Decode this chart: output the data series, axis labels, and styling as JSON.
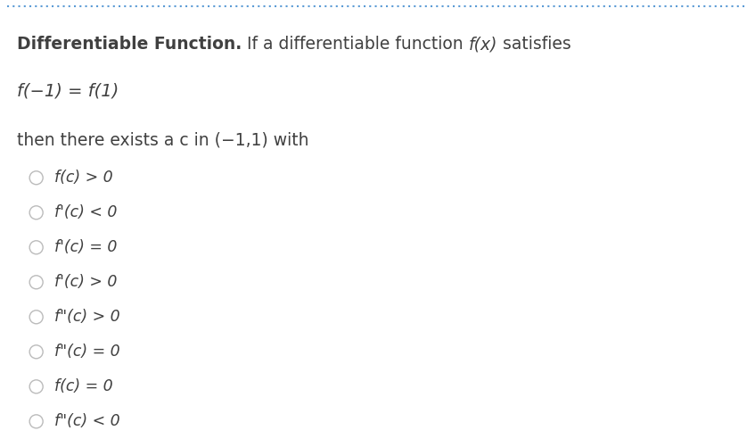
{
  "title_bold": "Differentiable Function.",
  "title_normal": " If a differentiable function ",
  "title_italic": "f(x)",
  "title_end": " satisfies",
  "equation": "f(−1) = f(1)",
  "subtitle": "then there exists a c in (−1,1) with",
  "options": [
    "f(c) > 0",
    "f'(c) < 0",
    "f'(c) = 0",
    "f'(c) > 0",
    "f\"(c) > 0",
    "f\"(c) = 0",
    "f(c) = 0",
    "f\"(c) < 0"
  ],
  "background_color": "#ffffff",
  "text_color": "#404040",
  "circle_color": "#bbbbbb",
  "border_color": "#5b9bd5",
  "font_size_title": 13.5,
  "font_size_eq": 14,
  "font_size_options": 12.5,
  "fig_width": 8.47,
  "fig_height": 4.92,
  "dpi": 100
}
